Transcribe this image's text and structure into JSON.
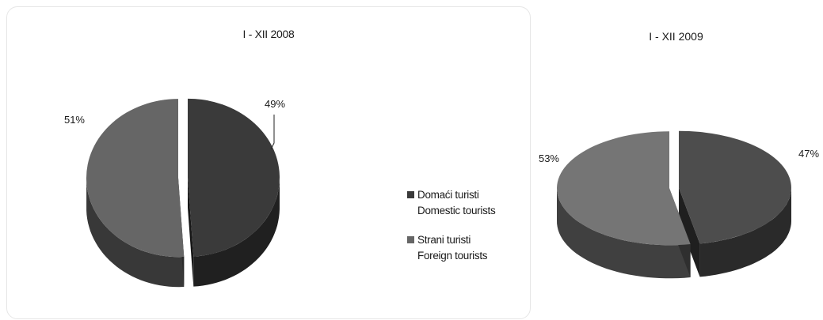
{
  "chart_data": [
    {
      "type": "pie",
      "title": "I - XII 2008",
      "categories": [
        "Domaći turisti",
        "Strani turisti"
      ],
      "values": [
        49,
        51
      ],
      "labels": [
        "49%",
        "51%"
      ],
      "colors": [
        "#3a3a3a",
        "#666666"
      ],
      "exploded": true,
      "three_d": true
    },
    {
      "type": "pie",
      "title": "I - XII 2009",
      "categories": [
        "Domaći turisti",
        "Strani turisti"
      ],
      "values": [
        47,
        53
      ],
      "labels": [
        "47%",
        "53%"
      ],
      "colors": [
        "#4d4d4d",
        "#757575"
      ],
      "exploded": true,
      "three_d": true
    }
  ],
  "legend": {
    "placement": "right",
    "items": [
      {
        "line1": "Domaći turisti",
        "line2": "Domestic tourists",
        "color": "#3a3a3a"
      },
      {
        "line1": "Strani turisti",
        "line2": "Foreign tourists",
        "color": "#666666"
      }
    ]
  }
}
